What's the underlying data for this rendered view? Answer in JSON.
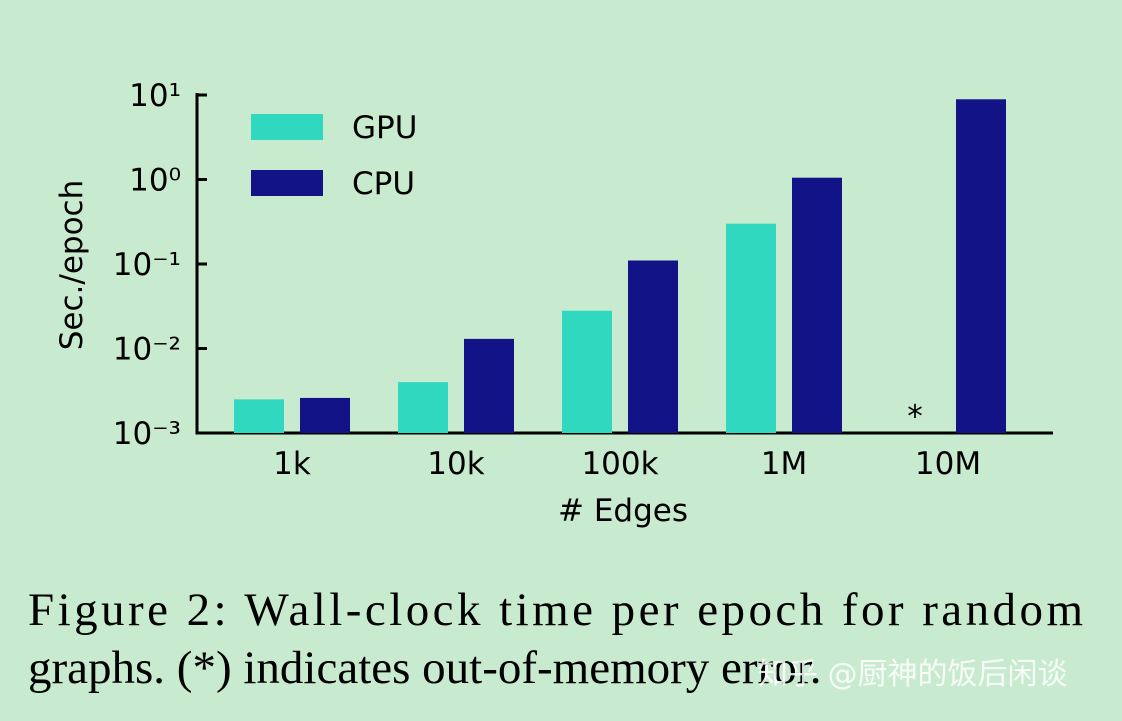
{
  "chart_data": {
    "type": "bar",
    "categories": [
      "1k",
      "10k",
      "100k",
      "1M",
      "10M"
    ],
    "series": [
      {
        "name": "GPU",
        "color": "#30d8bf",
        "values": [
          0.0025,
          0.004,
          0.028,
          0.3,
          null
        ]
      },
      {
        "name": "CPU",
        "color": "#111387",
        "values": [
          0.0026,
          0.013,
          0.11,
          1.05,
          8.9
        ]
      }
    ],
    "annotation": "*",
    "x_label": "# Edges",
    "y_label": "Sec./epoch",
    "log_scale": true,
    "ylim": [
      0.001,
      10
    ],
    "yticks": [
      {
        "value": 0.001,
        "label": "10⁻³"
      },
      {
        "value": 0.01,
        "label": "10⁻²"
      },
      {
        "value": 0.1,
        "label": "10⁻¹"
      },
      {
        "value": 1,
        "label": "10⁰"
      },
      {
        "value": 10,
        "label": "10¹"
      }
    ],
    "legend": "upper left"
  },
  "caption": [
    "Figure 2:  Wall-clock time per epoch for random",
    "graphs. (*) indicates out-of-memory error."
  ],
  "watermark": "知乎 @厨神的饭后闲谈"
}
